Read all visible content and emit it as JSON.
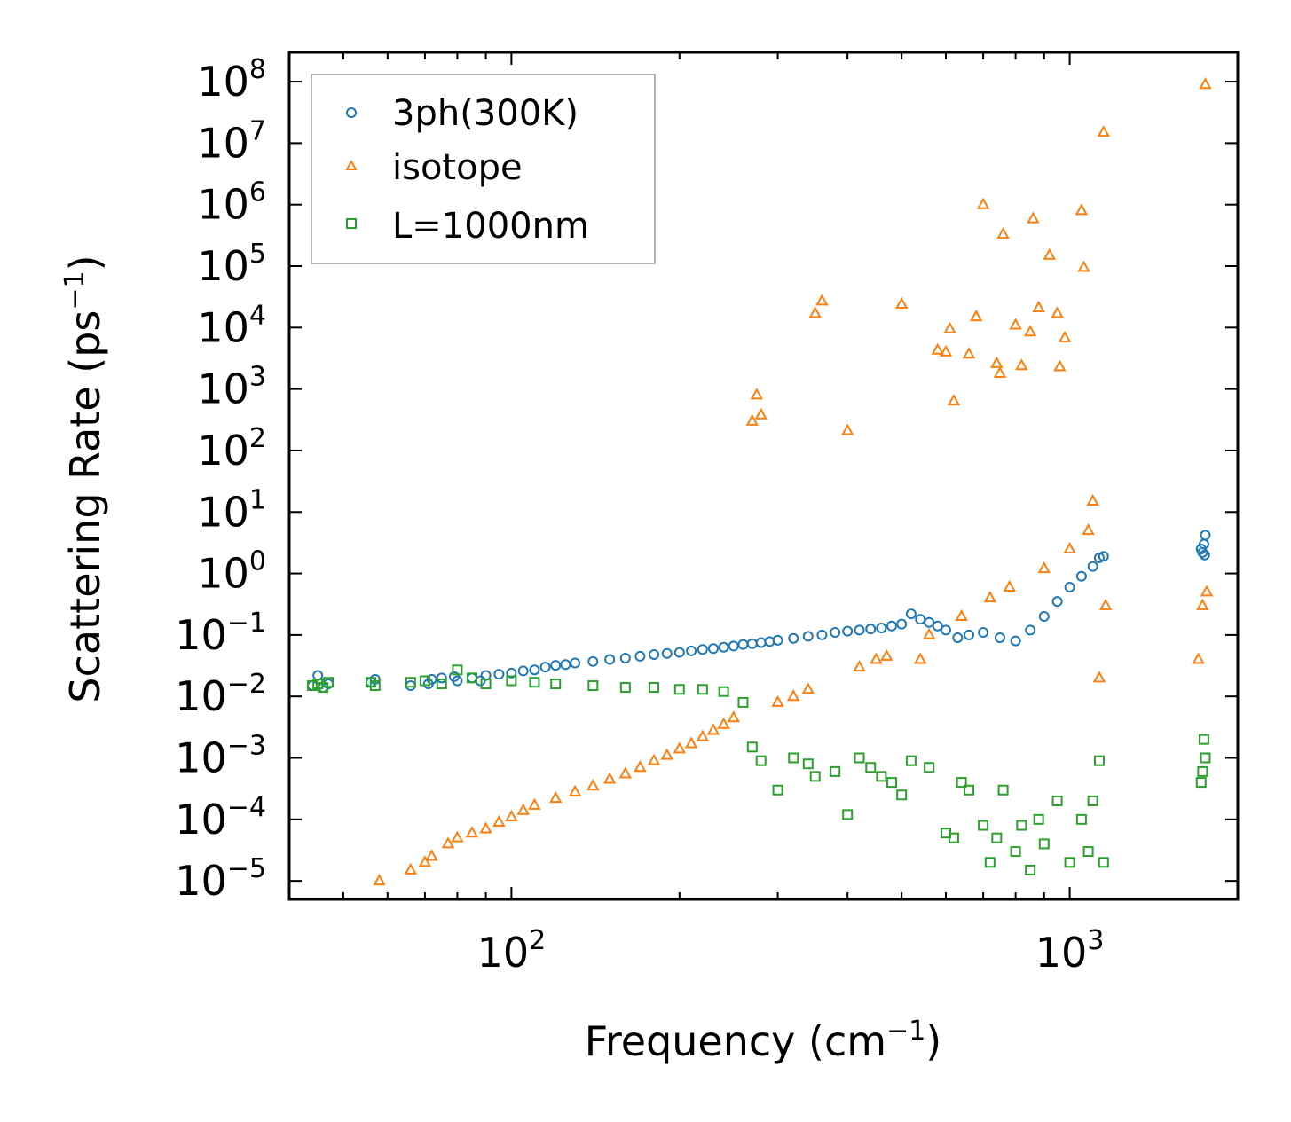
{
  "chart_data": {
    "type": "scatter",
    "xscale": "log",
    "yscale": "log",
    "xlim": [
      40,
      2000
    ],
    "ylim": [
      5e-06,
      300000000
    ],
    "xlabel": "Frequency (cm",
    "xlabel_sup": "−1",
    "xlabel_end": ")",
    "ylabel": "Scattering Rate (ps",
    "ylabel_sup": "−1",
    "ylabel_end": ")",
    "legend_position": "top-left",
    "x_ticks": [
      {
        "base": "10",
        "exp": "2",
        "value": 100
      },
      {
        "base": "10",
        "exp": "3",
        "value": 1000
      }
    ],
    "y_ticks": [
      {
        "base": "10",
        "exp": "−5",
        "value": 1e-05
      },
      {
        "base": "10",
        "exp": "−4",
        "value": 0.0001
      },
      {
        "base": "10",
        "exp": "−3",
        "value": 0.001
      },
      {
        "base": "10",
        "exp": "−2",
        "value": 0.01
      },
      {
        "base": "10",
        "exp": "−1",
        "value": 0.1
      },
      {
        "base": "10",
        "exp": "0",
        "value": 1
      },
      {
        "base": "10",
        "exp": "1",
        "value": 10
      },
      {
        "base": "10",
        "exp": "2",
        "value": 100
      },
      {
        "base": "10",
        "exp": "3",
        "value": 1000
      },
      {
        "base": "10",
        "exp": "4",
        "value": 10000
      },
      {
        "base": "10",
        "exp": "5",
        "value": 100000
      },
      {
        "base": "10",
        "exp": "6",
        "value": 1000000
      },
      {
        "base": "10",
        "exp": "7",
        "value": 10000000
      },
      {
        "base": "10",
        "exp": "8",
        "value": 100000000
      }
    ],
    "series": [
      {
        "name": "3ph(300K)",
        "marker": "circle",
        "color": "#1f77b4",
        "points": [
          [
            44,
            0.015
          ],
          [
            45,
            0.022
          ],
          [
            46,
            0.014
          ],
          [
            47,
            0.016
          ],
          [
            56,
            0.017
          ],
          [
            57,
            0.019
          ],
          [
            66,
            0.015
          ],
          [
            71,
            0.016
          ],
          [
            72,
            0.019
          ],
          [
            75,
            0.02
          ],
          [
            79,
            0.021
          ],
          [
            80,
            0.018
          ],
          [
            85,
            0.02
          ],
          [
            88,
            0.018
          ],
          [
            90,
            0.022
          ],
          [
            95,
            0.023
          ],
          [
            100,
            0.024
          ],
          [
            105,
            0.026
          ],
          [
            110,
            0.027
          ],
          [
            115,
            0.03
          ],
          [
            120,
            0.032
          ],
          [
            125,
            0.033
          ],
          [
            130,
            0.035
          ],
          [
            140,
            0.037
          ],
          [
            150,
            0.04
          ],
          [
            160,
            0.042
          ],
          [
            170,
            0.045
          ],
          [
            180,
            0.048
          ],
          [
            190,
            0.05
          ],
          [
            200,
            0.052
          ],
          [
            210,
            0.055
          ],
          [
            220,
            0.058
          ],
          [
            230,
            0.06
          ],
          [
            240,
            0.063
          ],
          [
            250,
            0.066
          ],
          [
            260,
            0.07
          ],
          [
            270,
            0.072
          ],
          [
            280,
            0.075
          ],
          [
            290,
            0.078
          ],
          [
            300,
            0.082
          ],
          [
            320,
            0.088
          ],
          [
            340,
            0.095
          ],
          [
            360,
            0.1
          ],
          [
            380,
            0.11
          ],
          [
            400,
            0.115
          ],
          [
            420,
            0.12
          ],
          [
            440,
            0.125
          ],
          [
            460,
            0.13
          ],
          [
            480,
            0.14
          ],
          [
            500,
            0.15
          ],
          [
            520,
            0.22
          ],
          [
            540,
            0.18
          ],
          [
            560,
            0.16
          ],
          [
            580,
            0.14
          ],
          [
            600,
            0.12
          ],
          [
            630,
            0.09
          ],
          [
            660,
            0.1
          ],
          [
            700,
            0.11
          ],
          [
            750,
            0.09
          ],
          [
            800,
            0.08
          ],
          [
            850,
            0.12
          ],
          [
            900,
            0.2
          ],
          [
            950,
            0.35
          ],
          [
            1000,
            0.6
          ],
          [
            1050,
            0.9
          ],
          [
            1100,
            1.3
          ],
          [
            1130,
            1.8
          ],
          [
            1150,
            1.9
          ],
          [
            1720,
            2.5
          ],
          [
            1730,
            2.2
          ],
          [
            1740,
            3.0
          ],
          [
            1750,
            4.2
          ],
          [
            1745,
            2.0
          ]
        ]
      },
      {
        "name": "isotope",
        "marker": "triangle",
        "color": "#ff7f0e",
        "points": [
          [
            58,
            1e-05
          ],
          [
            66,
            1.5e-05
          ],
          [
            70,
            2e-05
          ],
          [
            72,
            2.5e-05
          ],
          [
            77,
            4e-05
          ],
          [
            80,
            5e-05
          ],
          [
            85,
            6e-05
          ],
          [
            90,
            7e-05
          ],
          [
            95,
            9e-05
          ],
          [
            100,
            0.00011
          ],
          [
            105,
            0.00014
          ],
          [
            110,
            0.00017
          ],
          [
            120,
            0.00022
          ],
          [
            130,
            0.00028
          ],
          [
            140,
            0.00035
          ],
          [
            150,
            0.00045
          ],
          [
            160,
            0.00055
          ],
          [
            170,
            0.0007
          ],
          [
            180,
            0.0009
          ],
          [
            190,
            0.0011
          ],
          [
            200,
            0.0014
          ],
          [
            210,
            0.0017
          ],
          [
            220,
            0.0022
          ],
          [
            230,
            0.0028
          ],
          [
            240,
            0.0035
          ],
          [
            250,
            0.0045
          ],
          [
            270,
            300
          ],
          [
            275,
            800
          ],
          [
            280,
            380
          ],
          [
            300,
            0.008
          ],
          [
            320,
            0.01
          ],
          [
            340,
            0.013
          ],
          [
            350,
            17000
          ],
          [
            360,
            27000
          ],
          [
            400,
            210
          ],
          [
            420,
            0.03
          ],
          [
            450,
            0.04
          ],
          [
            470,
            0.045
          ],
          [
            500,
            24000
          ],
          [
            540,
            0.04
          ],
          [
            560,
            0.1
          ],
          [
            580,
            4300
          ],
          [
            600,
            4000
          ],
          [
            610,
            9500
          ],
          [
            620,
            640
          ],
          [
            640,
            0.2
          ],
          [
            660,
            3700
          ],
          [
            680,
            15000
          ],
          [
            700,
            1000000
          ],
          [
            720,
            0.4
          ],
          [
            740,
            2600
          ],
          [
            750,
            1800
          ],
          [
            760,
            330000
          ],
          [
            780,
            0.6
          ],
          [
            800,
            11000
          ],
          [
            820,
            2400
          ],
          [
            850,
            8500
          ],
          [
            860,
            590000
          ],
          [
            880,
            21000
          ],
          [
            900,
            1.2
          ],
          [
            920,
            150000
          ],
          [
            950,
            17000
          ],
          [
            960,
            2300
          ],
          [
            980,
            6800
          ],
          [
            1000,
            2.5
          ],
          [
            1050,
            800000
          ],
          [
            1060,
            95000
          ],
          [
            1080,
            5
          ],
          [
            1100,
            15
          ],
          [
            1130,
            0.02
          ],
          [
            1150,
            15000000
          ],
          [
            1160,
            0.3
          ],
          [
            1700,
            0.04
          ],
          [
            1730,
            0.3
          ],
          [
            1750,
            90000000
          ],
          [
            1760,
            0.5
          ]
        ]
      },
      {
        "name": "L=1000nm",
        "marker": "square",
        "color": "#2ca02c",
        "points": [
          [
            44,
            0.015
          ],
          [
            45,
            0.016
          ],
          [
            46,
            0.014
          ],
          [
            47,
            0.017
          ],
          [
            56,
            0.017
          ],
          [
            57,
            0.015
          ],
          [
            66,
            0.017
          ],
          [
            70,
            0.018
          ],
          [
            75,
            0.016
          ],
          [
            80,
            0.027
          ],
          [
            85,
            0.02
          ],
          [
            90,
            0.016
          ],
          [
            100,
            0.018
          ],
          [
            110,
            0.017
          ],
          [
            120,
            0.016
          ],
          [
            140,
            0.015
          ],
          [
            160,
            0.014
          ],
          [
            180,
            0.014
          ],
          [
            200,
            0.013
          ],
          [
            220,
            0.013
          ],
          [
            240,
            0.012
          ],
          [
            260,
            0.008
          ],
          [
            270,
            0.0015
          ],
          [
            280,
            0.0009
          ],
          [
            300,
            0.0003
          ],
          [
            320,
            0.001
          ],
          [
            340,
            0.0008
          ],
          [
            350,
            0.0005
          ],
          [
            380,
            0.0006
          ],
          [
            400,
            0.00012
          ],
          [
            420,
            0.001
          ],
          [
            440,
            0.0007
          ],
          [
            460,
            0.0005
          ],
          [
            480,
            0.0004
          ],
          [
            500,
            0.00025
          ],
          [
            520,
            0.0009
          ],
          [
            560,
            0.0007
          ],
          [
            600,
            6e-05
          ],
          [
            620,
            5e-05
          ],
          [
            640,
            0.0004
          ],
          [
            660,
            0.0003
          ],
          [
            700,
            8e-05
          ],
          [
            720,
            2e-05
          ],
          [
            740,
            5e-05
          ],
          [
            760,
            0.0003
          ],
          [
            800,
            3e-05
          ],
          [
            820,
            8e-05
          ],
          [
            850,
            1.5e-05
          ],
          [
            880,
            0.0001
          ],
          [
            900,
            4e-05
          ],
          [
            950,
            0.0002
          ],
          [
            1000,
            2e-05
          ],
          [
            1050,
            0.0001
          ],
          [
            1080,
            3e-05
          ],
          [
            1100,
            0.0002
          ],
          [
            1130,
            0.0009
          ],
          [
            1150,
            2e-05
          ],
          [
            1720,
            0.0004
          ],
          [
            1730,
            0.0006
          ],
          [
            1740,
            0.002
          ],
          [
            1750,
            0.001
          ]
        ]
      }
    ]
  }
}
